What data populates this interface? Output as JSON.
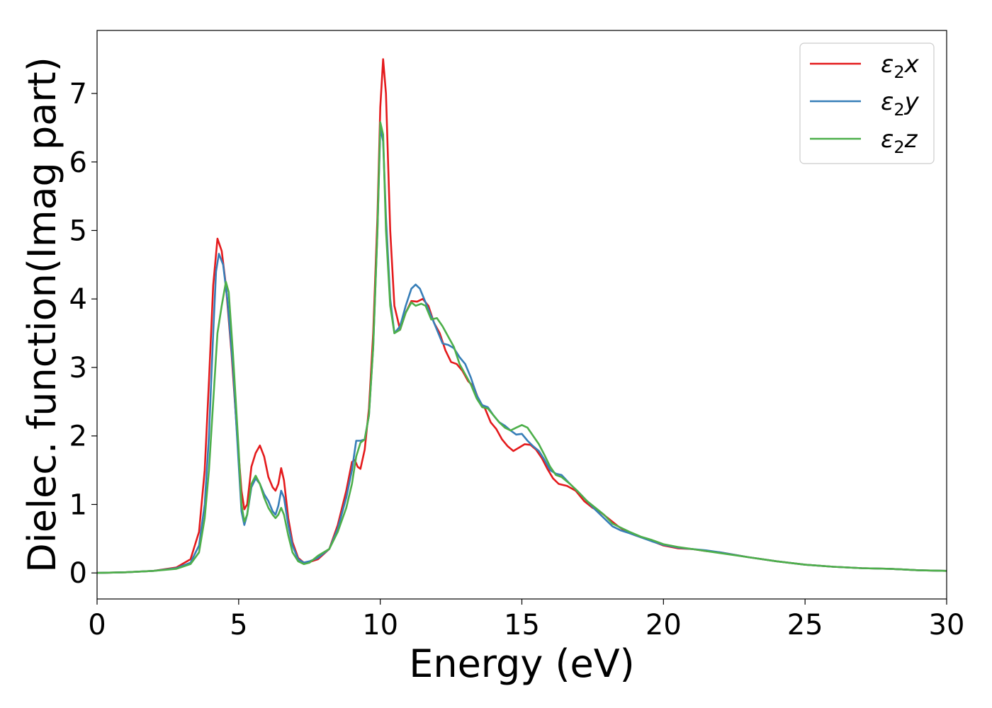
{
  "chart_data": {
    "type": "line",
    "xlabel": "Energy (eV)",
    "ylabel": "Dielec. function(Imag part)",
    "xlim": [
      0,
      30
    ],
    "ylim": [
      -0.38,
      7.92
    ],
    "xticks": [
      0,
      5,
      10,
      15,
      20,
      25,
      30
    ],
    "yticks": [
      0,
      1,
      2,
      3,
      4,
      5,
      6,
      7
    ],
    "grid": false,
    "legend_position": "top-right",
    "series": [
      {
        "name": "ε2x",
        "legend": {
          "symbol": "ε",
          "sub": "2",
          "suffix": "x"
        },
        "color": "#e41a1c",
        "points": [
          [
            0,
            0
          ],
          [
            1,
            0.01
          ],
          [
            2,
            0.03
          ],
          [
            2.8,
            0.08
          ],
          [
            3.3,
            0.2
          ],
          [
            3.6,
            0.6
          ],
          [
            3.8,
            1.5
          ],
          [
            3.95,
            2.8
          ],
          [
            4.1,
            4.2
          ],
          [
            4.25,
            4.88
          ],
          [
            4.4,
            4.7
          ],
          [
            4.55,
            4.2
          ],
          [
            4.75,
            3.2
          ],
          [
            4.95,
            2.0
          ],
          [
            5.1,
            1.2
          ],
          [
            5.2,
            0.93
          ],
          [
            5.3,
            1.0
          ],
          [
            5.45,
            1.55
          ],
          [
            5.6,
            1.75
          ],
          [
            5.75,
            1.86
          ],
          [
            5.9,
            1.7
          ],
          [
            6.05,
            1.4
          ],
          [
            6.2,
            1.25
          ],
          [
            6.3,
            1.2
          ],
          [
            6.4,
            1.3
          ],
          [
            6.5,
            1.53
          ],
          [
            6.6,
            1.35
          ],
          [
            6.75,
            0.8
          ],
          [
            6.9,
            0.45
          ],
          [
            7.1,
            0.22
          ],
          [
            7.3,
            0.15
          ],
          [
            7.5,
            0.16
          ],
          [
            7.8,
            0.2
          ],
          [
            8.2,
            0.35
          ],
          [
            8.5,
            0.7
          ],
          [
            8.8,
            1.2
          ],
          [
            9.0,
            1.62
          ],
          [
            9.1,
            1.65
          ],
          [
            9.2,
            1.55
          ],
          [
            9.3,
            1.52
          ],
          [
            9.45,
            1.8
          ],
          [
            9.6,
            2.4
          ],
          [
            9.75,
            3.5
          ],
          [
            9.9,
            5.2
          ],
          [
            10.0,
            6.8
          ],
          [
            10.1,
            7.5
          ],
          [
            10.2,
            7.0
          ],
          [
            10.35,
            5.0
          ],
          [
            10.5,
            3.9
          ],
          [
            10.7,
            3.55
          ],
          [
            10.9,
            3.8
          ],
          [
            11.1,
            3.97
          ],
          [
            11.3,
            3.96
          ],
          [
            11.5,
            4.0
          ],
          [
            11.7,
            3.9
          ],
          [
            11.9,
            3.65
          ],
          [
            12.1,
            3.5
          ],
          [
            12.3,
            3.25
          ],
          [
            12.5,
            3.08
          ],
          [
            12.7,
            3.05
          ],
          [
            12.9,
            2.95
          ],
          [
            13.1,
            2.8
          ],
          [
            13.3,
            2.72
          ],
          [
            13.5,
            2.5
          ],
          [
            13.7,
            2.4
          ],
          [
            13.9,
            2.2
          ],
          [
            14.1,
            2.1
          ],
          [
            14.3,
            1.95
          ],
          [
            14.5,
            1.85
          ],
          [
            14.7,
            1.78
          ],
          [
            14.9,
            1.83
          ],
          [
            15.1,
            1.88
          ],
          [
            15.3,
            1.87
          ],
          [
            15.5,
            1.8
          ],
          [
            15.7,
            1.68
          ],
          [
            15.9,
            1.52
          ],
          [
            16.1,
            1.38
          ],
          [
            16.3,
            1.3
          ],
          [
            16.6,
            1.27
          ],
          [
            16.9,
            1.2
          ],
          [
            17.2,
            1.05
          ],
          [
            17.5,
            0.95
          ],
          [
            17.8,
            0.88
          ],
          [
            18.1,
            0.78
          ],
          [
            18.4,
            0.68
          ],
          [
            18.7,
            0.6
          ],
          [
            19.0,
            0.55
          ],
          [
            19.5,
            0.48
          ],
          [
            20,
            0.4
          ],
          [
            20.5,
            0.36
          ],
          [
            21,
            0.35
          ],
          [
            21.5,
            0.32
          ],
          [
            22,
            0.3
          ],
          [
            23,
            0.23
          ],
          [
            24,
            0.17
          ],
          [
            25,
            0.12
          ],
          [
            26,
            0.09
          ],
          [
            27,
            0.07
          ],
          [
            28,
            0.06
          ],
          [
            29,
            0.04
          ],
          [
            30,
            0.03
          ]
        ]
      },
      {
        "name": "ε2y",
        "legend": {
          "symbol": "ε",
          "sub": "2",
          "suffix": "y"
        },
        "color": "#377eb8",
        "points": [
          [
            0,
            0
          ],
          [
            1,
            0.01
          ],
          [
            2,
            0.03
          ],
          [
            2.8,
            0.07
          ],
          [
            3.3,
            0.15
          ],
          [
            3.6,
            0.4
          ],
          [
            3.8,
            1.0
          ],
          [
            3.95,
            2.0
          ],
          [
            4.1,
            3.5
          ],
          [
            4.2,
            4.4
          ],
          [
            4.3,
            4.66
          ],
          [
            4.45,
            4.5
          ],
          [
            4.6,
            4.0
          ],
          [
            4.8,
            3.0
          ],
          [
            5.0,
            1.6
          ],
          [
            5.1,
            0.9
          ],
          [
            5.2,
            0.7
          ],
          [
            5.3,
            0.85
          ],
          [
            5.45,
            1.25
          ],
          [
            5.6,
            1.38
          ],
          [
            5.75,
            1.3
          ],
          [
            5.9,
            1.15
          ],
          [
            6.05,
            1.05
          ],
          [
            6.2,
            0.9
          ],
          [
            6.3,
            0.85
          ],
          [
            6.4,
            0.98
          ],
          [
            6.5,
            1.2
          ],
          [
            6.6,
            1.1
          ],
          [
            6.75,
            0.7
          ],
          [
            6.9,
            0.4
          ],
          [
            7.1,
            0.2
          ],
          [
            7.3,
            0.15
          ],
          [
            7.5,
            0.17
          ],
          [
            7.8,
            0.22
          ],
          [
            8.2,
            0.35
          ],
          [
            8.5,
            0.65
          ],
          [
            8.8,
            1.1
          ],
          [
            9.0,
            1.5
          ],
          [
            9.15,
            1.93
          ],
          [
            9.3,
            1.93
          ],
          [
            9.45,
            1.95
          ],
          [
            9.6,
            2.3
          ],
          [
            9.75,
            3.3
          ],
          [
            9.9,
            5.0
          ],
          [
            10.0,
            6.5
          ],
          [
            10.1,
            6.3
          ],
          [
            10.2,
            5.2
          ],
          [
            10.35,
            4.0
          ],
          [
            10.5,
            3.5
          ],
          [
            10.7,
            3.6
          ],
          [
            10.9,
            3.9
          ],
          [
            11.1,
            4.15
          ],
          [
            11.25,
            4.21
          ],
          [
            11.4,
            4.15
          ],
          [
            11.6,
            3.95
          ],
          [
            11.8,
            3.75
          ],
          [
            12.0,
            3.55
          ],
          [
            12.2,
            3.35
          ],
          [
            12.4,
            3.33
          ],
          [
            12.6,
            3.28
          ],
          [
            12.8,
            3.15
          ],
          [
            13.0,
            3.05
          ],
          [
            13.2,
            2.85
          ],
          [
            13.4,
            2.6
          ],
          [
            13.6,
            2.45
          ],
          [
            13.8,
            2.42
          ],
          [
            14.0,
            2.3
          ],
          [
            14.2,
            2.2
          ],
          [
            14.4,
            2.15
          ],
          [
            14.6,
            2.08
          ],
          [
            14.8,
            2.02
          ],
          [
            15.0,
            2.03
          ],
          [
            15.2,
            1.93
          ],
          [
            15.4,
            1.85
          ],
          [
            15.6,
            1.78
          ],
          [
            15.8,
            1.65
          ],
          [
            16.0,
            1.5
          ],
          [
            16.2,
            1.45
          ],
          [
            16.4,
            1.43
          ],
          [
            16.7,
            1.3
          ],
          [
            17.0,
            1.18
          ],
          [
            17.3,
            1.05
          ],
          [
            17.6,
            0.92
          ],
          [
            17.9,
            0.8
          ],
          [
            18.2,
            0.68
          ],
          [
            18.5,
            0.62
          ],
          [
            18.8,
            0.58
          ],
          [
            19.2,
            0.52
          ],
          [
            19.6,
            0.46
          ],
          [
            20,
            0.41
          ],
          [
            20.5,
            0.37
          ],
          [
            21,
            0.35
          ],
          [
            21.5,
            0.33
          ],
          [
            22,
            0.3
          ],
          [
            23,
            0.23
          ],
          [
            24,
            0.17
          ],
          [
            25,
            0.12
          ],
          [
            26,
            0.09
          ],
          [
            27,
            0.07
          ],
          [
            28,
            0.06
          ],
          [
            29,
            0.04
          ],
          [
            30,
            0.03
          ]
        ]
      },
      {
        "name": "ε2z",
        "legend": {
          "symbol": "ε",
          "sub": "2",
          "suffix": "z"
        },
        "color": "#4daf4a",
        "points": [
          [
            0,
            0
          ],
          [
            1,
            0.01
          ],
          [
            2,
            0.03
          ],
          [
            2.8,
            0.06
          ],
          [
            3.3,
            0.13
          ],
          [
            3.6,
            0.3
          ],
          [
            3.8,
            0.8
          ],
          [
            3.95,
            1.5
          ],
          [
            4.1,
            2.5
          ],
          [
            4.25,
            3.5
          ],
          [
            4.4,
            3.9
          ],
          [
            4.55,
            4.25
          ],
          [
            4.65,
            4.1
          ],
          [
            4.8,
            3.2
          ],
          [
            5.0,
            1.8
          ],
          [
            5.1,
            1.0
          ],
          [
            5.2,
            0.75
          ],
          [
            5.3,
            0.85
          ],
          [
            5.45,
            1.3
          ],
          [
            5.6,
            1.42
          ],
          [
            5.75,
            1.3
          ],
          [
            5.9,
            1.1
          ],
          [
            6.05,
            0.95
          ],
          [
            6.2,
            0.85
          ],
          [
            6.3,
            0.8
          ],
          [
            6.4,
            0.85
          ],
          [
            6.5,
            0.95
          ],
          [
            6.6,
            0.85
          ],
          [
            6.75,
            0.55
          ],
          [
            6.9,
            0.3
          ],
          [
            7.1,
            0.17
          ],
          [
            7.3,
            0.13
          ],
          [
            7.5,
            0.15
          ],
          [
            7.8,
            0.25
          ],
          [
            8.2,
            0.35
          ],
          [
            8.5,
            0.6
          ],
          [
            8.8,
            0.95
          ],
          [
            9.0,
            1.3
          ],
          [
            9.15,
            1.7
          ],
          [
            9.3,
            1.9
          ],
          [
            9.45,
            1.95
          ],
          [
            9.6,
            2.3
          ],
          [
            9.75,
            3.3
          ],
          [
            9.9,
            5.0
          ],
          [
            10.0,
            6.58
          ],
          [
            10.1,
            6.4
          ],
          [
            10.2,
            5.0
          ],
          [
            10.35,
            3.9
          ],
          [
            10.5,
            3.5
          ],
          [
            10.7,
            3.55
          ],
          [
            10.9,
            3.8
          ],
          [
            11.1,
            3.95
          ],
          [
            11.25,
            3.9
          ],
          [
            11.45,
            3.93
          ],
          [
            11.6,
            3.9
          ],
          [
            11.8,
            3.7
          ],
          [
            12.0,
            3.72
          ],
          [
            12.2,
            3.6
          ],
          [
            12.4,
            3.45
          ],
          [
            12.6,
            3.3
          ],
          [
            12.8,
            3.05
          ],
          [
            13.0,
            2.9
          ],
          [
            13.2,
            2.75
          ],
          [
            13.4,
            2.55
          ],
          [
            13.6,
            2.42
          ],
          [
            13.8,
            2.4
          ],
          [
            14.0,
            2.3
          ],
          [
            14.2,
            2.2
          ],
          [
            14.4,
            2.12
          ],
          [
            14.6,
            2.08
          ],
          [
            14.8,
            2.12
          ],
          [
            15.0,
            2.16
          ],
          [
            15.2,
            2.12
          ],
          [
            15.4,
            2.0
          ],
          [
            15.6,
            1.88
          ],
          [
            15.8,
            1.72
          ],
          [
            16.0,
            1.55
          ],
          [
            16.2,
            1.43
          ],
          [
            16.4,
            1.4
          ],
          [
            16.7,
            1.3
          ],
          [
            17.0,
            1.18
          ],
          [
            17.3,
            1.05
          ],
          [
            17.6,
            0.95
          ],
          [
            17.9,
            0.85
          ],
          [
            18.2,
            0.72
          ],
          [
            18.5,
            0.66
          ],
          [
            18.8,
            0.6
          ],
          [
            19.2,
            0.53
          ],
          [
            19.6,
            0.48
          ],
          [
            20,
            0.42
          ],
          [
            20.5,
            0.38
          ],
          [
            21,
            0.35
          ],
          [
            21.5,
            0.32
          ],
          [
            22,
            0.29
          ],
          [
            23,
            0.23
          ],
          [
            24,
            0.17
          ],
          [
            25,
            0.12
          ],
          [
            26,
            0.09
          ],
          [
            27,
            0.07
          ],
          [
            28,
            0.06
          ],
          [
            29,
            0.04
          ],
          [
            30,
            0.03
          ]
        ]
      }
    ]
  }
}
